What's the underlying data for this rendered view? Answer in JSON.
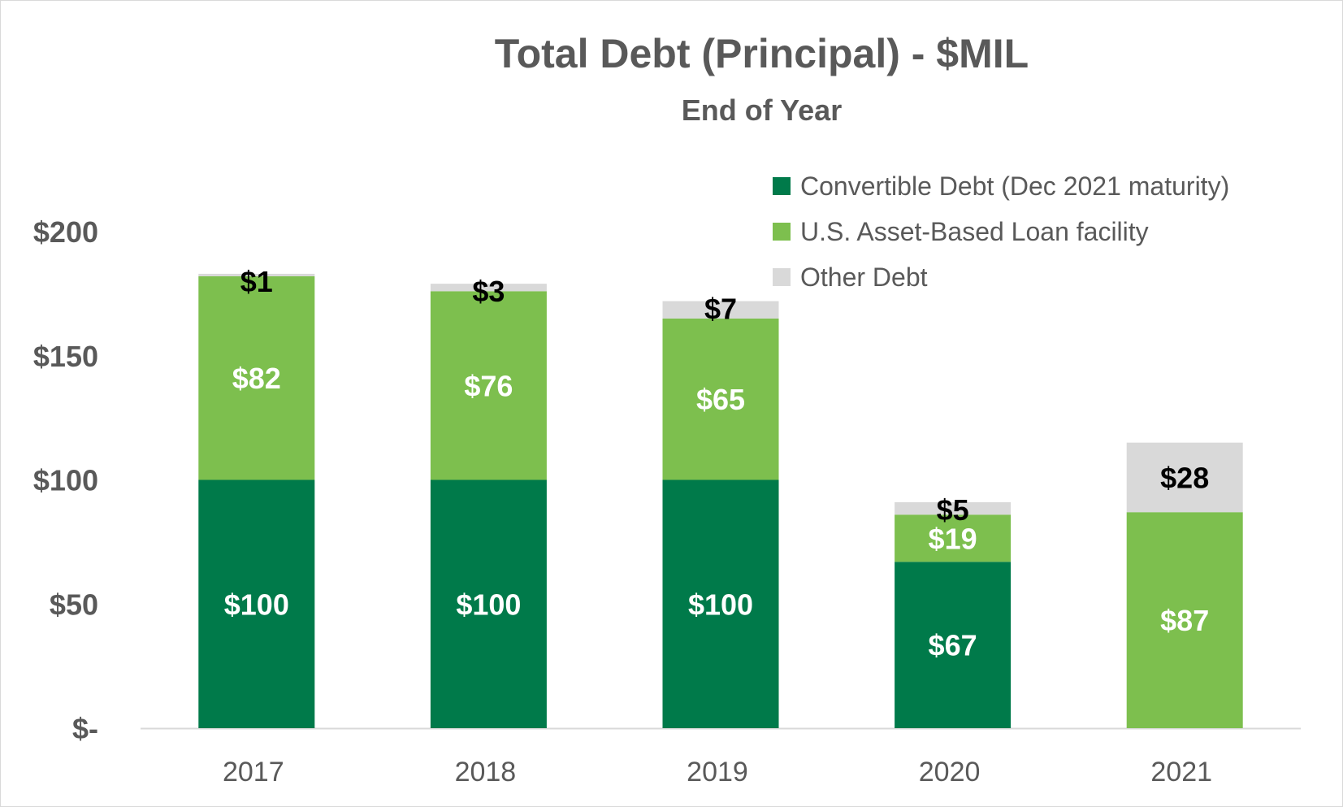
{
  "chart_data": {
    "type": "bar",
    "stacked": true,
    "title": "Total Debt (Principal) - $MIL",
    "subtitle": "End of Year",
    "categories": [
      "2017",
      "2018",
      "2019",
      "2020",
      "2021"
    ],
    "series": [
      {
        "name": "Convertible Debt (Dec 2021 maturity)",
        "color": "#007a4a",
        "label_color": "#ffffff",
        "values": [
          100,
          100,
          100,
          67,
          0
        ],
        "labels": [
          "$100",
          "$100",
          "$100",
          "$67",
          ""
        ]
      },
      {
        "name": "U.S. Asset-Based Loan facility",
        "color": "#7dbf4e",
        "label_color": "#ffffff",
        "values": [
          82,
          76,
          65,
          19,
          87
        ],
        "labels": [
          "$82",
          "$76",
          "$65",
          "$19",
          "$87"
        ]
      },
      {
        "name": "Other Debt",
        "color": "#d9d9d9",
        "label_color": "#000000",
        "values": [
          1,
          3,
          7,
          5,
          28
        ],
        "labels": [
          "$1",
          "$3",
          "$7",
          "$5",
          "$28"
        ]
      }
    ],
    "yticks": [
      {
        "value": 0,
        "label": "$-"
      },
      {
        "value": 50,
        "label": "$50"
      },
      {
        "value": 100,
        "label": "$100"
      },
      {
        "value": 150,
        "label": "$150"
      },
      {
        "value": 200,
        "label": "$200"
      }
    ],
    "ylim": [
      0,
      200
    ],
    "grid": false,
    "legend_position": "top-right"
  }
}
